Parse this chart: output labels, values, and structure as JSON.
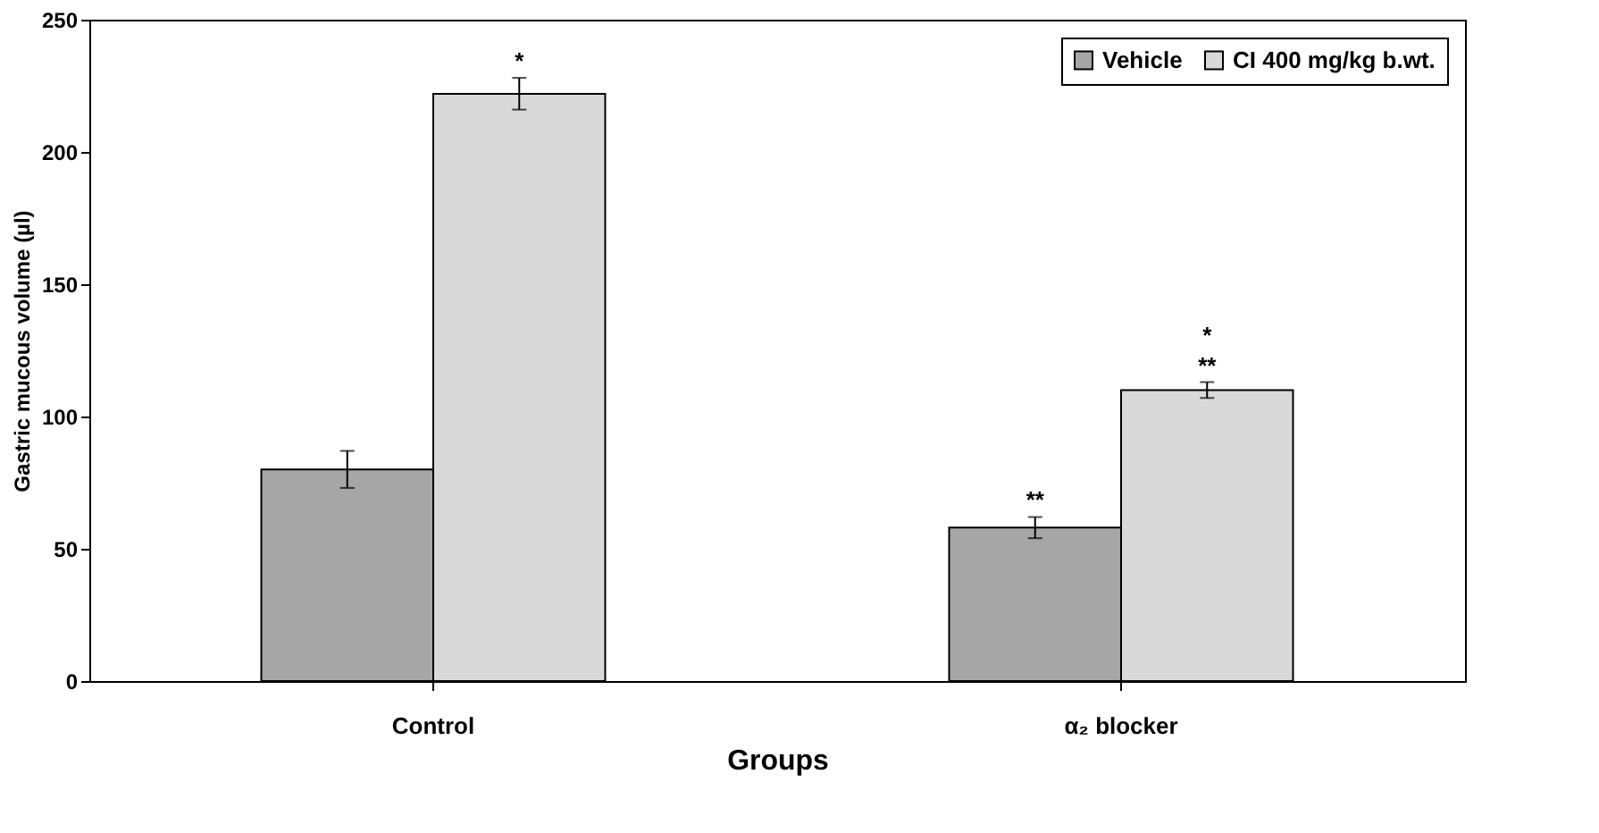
{
  "chart_data": {
    "type": "bar",
    "xlabel": "Groups",
    "ylabel": "Gastric mucous volume (µl)",
    "categories": [
      "Control",
      "α₂ blocker"
    ],
    "series": [
      {
        "name": "Vehicle",
        "color": "#a6a6a6",
        "values": [
          80,
          58
        ],
        "errors": [
          7,
          4
        ],
        "value_labels": [
          null,
          "**"
        ]
      },
      {
        "name": "CI 400 mg/kg b.wt.",
        "color": "#d9d9d9",
        "values": [
          222,
          110
        ],
        "errors": [
          6,
          3
        ],
        "value_labels": [
          "*",
          "*\n**"
        ]
      }
    ],
    "ylim": [
      0,
      250
    ],
    "yticks": [
      0,
      50,
      100,
      150,
      200,
      250
    ],
    "grid": false,
    "legend": "top right"
  }
}
